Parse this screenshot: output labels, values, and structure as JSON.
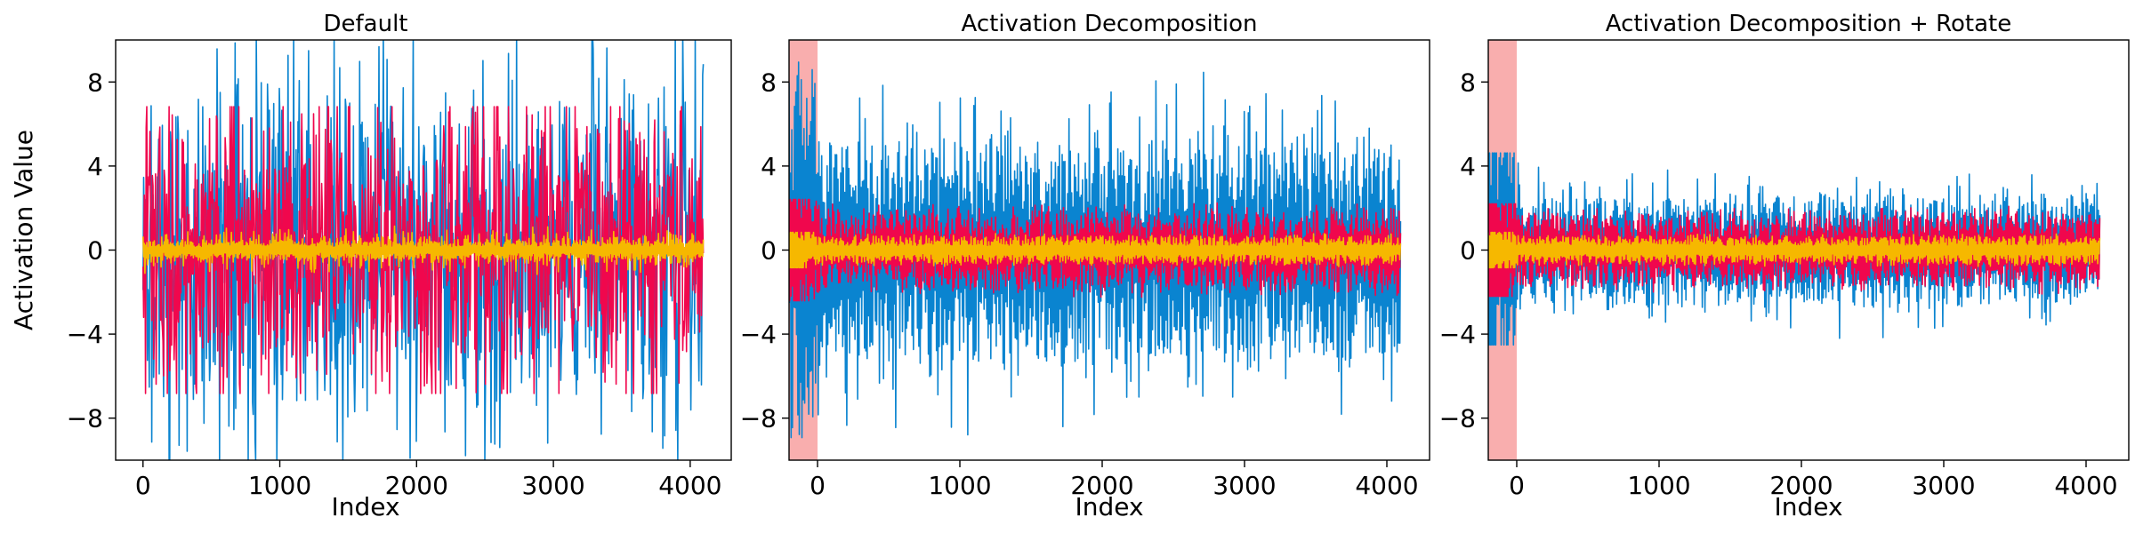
{
  "chart_data": [
    {
      "type": "line",
      "title": "Default",
      "xlabel": "Index",
      "ylabel": "Activation Value",
      "xlim": [
        -200,
        4300
      ],
      "ylim": [
        -10,
        10
      ],
      "xticks": [
        0,
        1000,
        2000,
        3000,
        4000
      ],
      "yticks": [
        8,
        4,
        0,
        -4,
        -8
      ],
      "ytick_labels": [
        "8",
        "4",
        "0",
        "−4",
        "−8"
      ],
      "series": [
        {
          "color": "#0a84d0",
          "values": [
            -9.5,
            9.8
          ]
        },
        {
          "color": "#f0074d",
          "values": [
            -6.5,
            6.5
          ]
        },
        {
          "color": "#f6b800",
          "values": [
            -1.2,
            1.2
          ]
        }
      ],
      "highlight": null
    },
    {
      "type": "line",
      "title": "Activation Decomposition",
      "xlabel": "Index",
      "ylabel": "",
      "xlim": [
        -200,
        4300
      ],
      "ylim": [
        -10,
        10
      ],
      "xticks": [
        0,
        1000,
        2000,
        3000,
        4000
      ],
      "yticks": [
        8,
        4,
        0,
        -4,
        -8
      ],
      "ytick_labels": [
        "8",
        "4",
        "0",
        "−4",
        "−8"
      ],
      "series": [
        {
          "color": "#0a84d0",
          "values": [
            -8.5,
            9.2
          ]
        },
        {
          "color": "#f0074d",
          "values": [
            -2.3,
            2.3
          ]
        },
        {
          "color": "#f6b800",
          "values": [
            -0.8,
            0.8
          ]
        }
      ],
      "highlight": {
        "x_from": -200,
        "x_to": 0,
        "color": "#f8a0a0"
      }
    },
    {
      "type": "line",
      "title": "Activation Decomposition + Rotate",
      "xlabel": "Index",
      "ylabel": "",
      "xlim": [
        -200,
        4300
      ],
      "ylim": [
        -10,
        10
      ],
      "xticks": [
        0,
        1000,
        2000,
        3000,
        4000
      ],
      "yticks": [
        8,
        4,
        0,
        -4,
        -8
      ],
      "ytick_labels": [
        "8",
        "4",
        "0",
        "−4",
        "−8"
      ],
      "series": [
        {
          "color": "#0a84d0",
          "values": [
            -4.3,
            4.4
          ]
        },
        {
          "color": "#f0074d",
          "values": [
            -2.1,
            2.1
          ]
        },
        {
          "color": "#f6b800",
          "values": [
            -0.8,
            0.8
          ]
        }
      ],
      "highlight": {
        "x_from": -200,
        "x_to": 0,
        "color": "#f8a0a0"
      }
    }
  ]
}
